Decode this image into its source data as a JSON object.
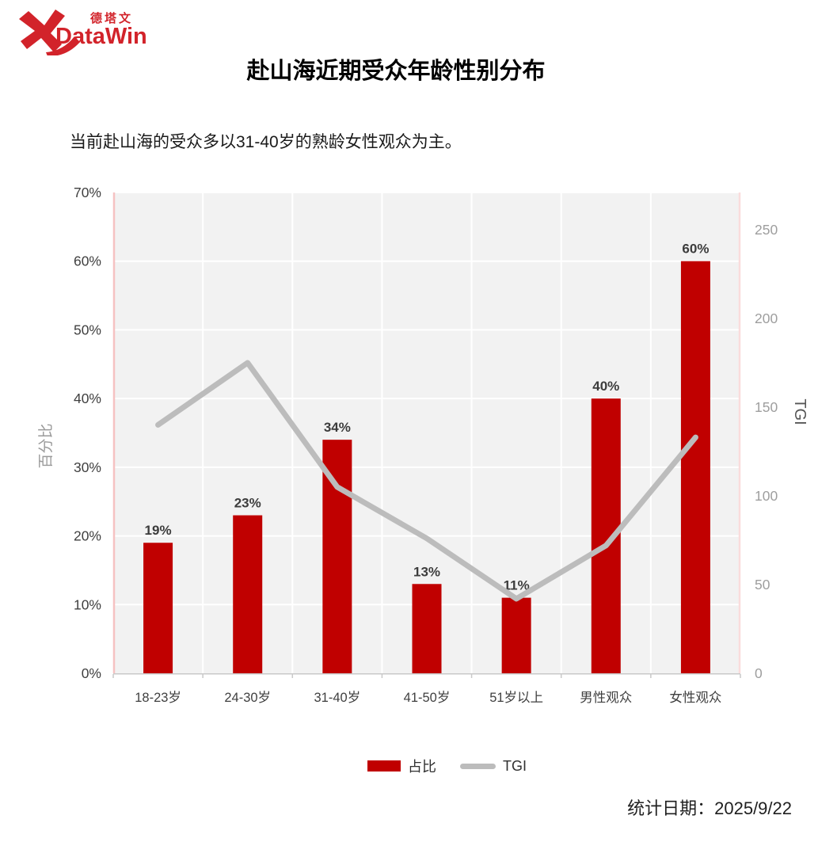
{
  "logo": {
    "brand_cn": "德塔文",
    "brand_en": "DataWin",
    "color": "#d2232a"
  },
  "header": {
    "title": "赴山海近期受众年龄性别分布"
  },
  "subtitle": "当前赴山海的受众多以31-40岁的熟龄女性观众为主。",
  "legend": {
    "items": [
      {
        "label": "占比",
        "swatch": "bar",
        "color": "#c00000"
      },
      {
        "label": "TGI",
        "swatch": "line",
        "color": "#bcbcbc"
      }
    ]
  },
  "footer": {
    "stat_date": "统计日期：2025/9/22"
  },
  "chart_data": {
    "type": "bar",
    "title": "赴山海近期受众年龄性别分布",
    "categories": [
      "18-23岁",
      "24-30岁",
      "31-40岁",
      "41-50岁",
      "51岁以上",
      "男性观众",
      "女性观众"
    ],
    "series": [
      {
        "name": "占比",
        "type": "bar",
        "y_axis": "left",
        "values": [
          19,
          23,
          34,
          13,
          11,
          40,
          60
        ],
        "labels": [
          "19%",
          "23%",
          "34%",
          "13%",
          "11%",
          "40%",
          "60%"
        ],
        "color": "#c00000"
      },
      {
        "name": "TGI",
        "type": "line",
        "y_axis": "right",
        "values": [
          140,
          175,
          105,
          76,
          42,
          72,
          133
        ],
        "color": "#bcbcbc"
      }
    ],
    "left_axis": {
      "title": "百分比",
      "min": 0,
      "max": 70,
      "tick_values": [
        0,
        10,
        20,
        30,
        40,
        50,
        60,
        70
      ],
      "tick_labels": [
        "0%",
        "10%",
        "20%",
        "30%",
        "40%",
        "50%",
        "60%",
        "70%"
      ]
    },
    "right_axis": {
      "title": "TGI",
      "min": 0,
      "max": 271,
      "tick_values": [
        0,
        50,
        100,
        150,
        200,
        250
      ],
      "tick_labels": [
        "0",
        "50",
        "100",
        "150",
        "200",
        "250"
      ]
    },
    "grid": true,
    "legend_position": "bottom",
    "colors": {
      "plot_bg": "#f2f2f2",
      "gridline": "#ffffff",
      "spine_left": "#f6c2c2",
      "spine_right": "#fadcdc",
      "axis_line": "#c9c9c9",
      "tick_label_left": "#3f3f3f",
      "tick_label_right": "#9e9e9e",
      "axis_title": "#9a9a9a",
      "category_label": "#3f3f3f",
      "bar_label": "#3c3c3c"
    }
  }
}
